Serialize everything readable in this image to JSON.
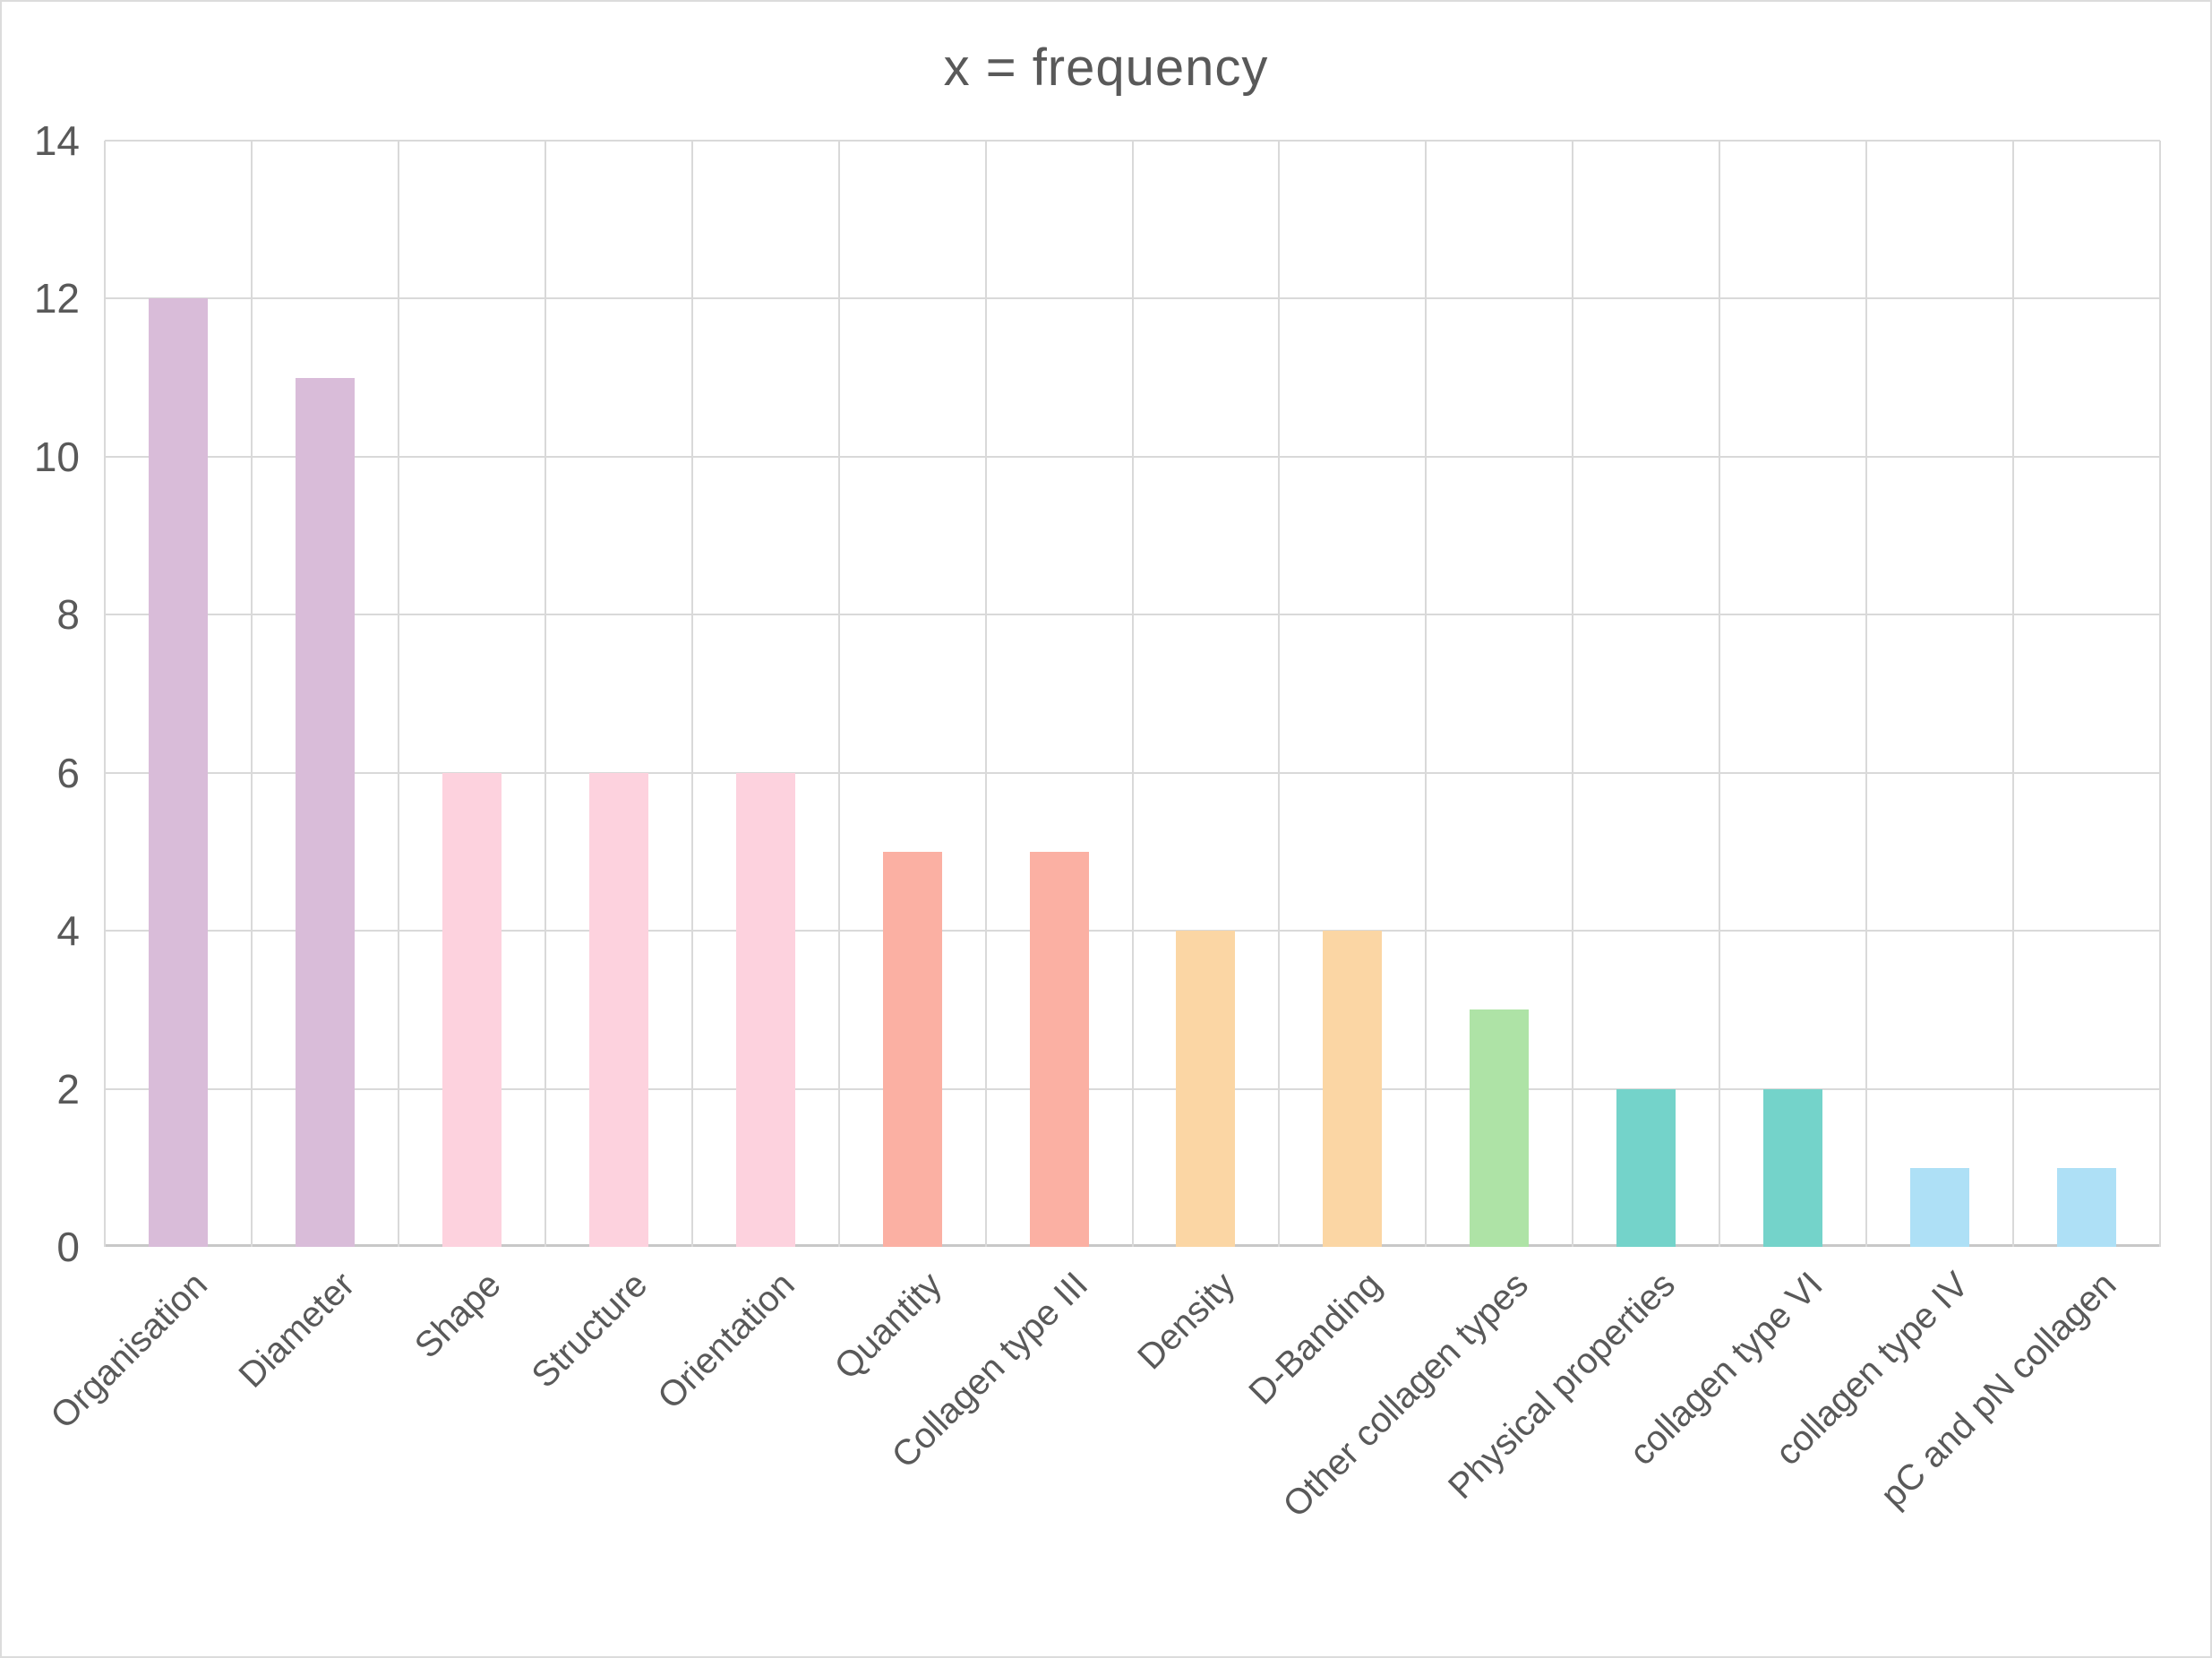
{
  "window": {
    "background": "#ffffff",
    "border_color": "#dcdcdc"
  },
  "chart_data": {
    "type": "bar",
    "title": "x = frequency",
    "categories": [
      "Organisation",
      "Diameter",
      "Shape",
      "Structure",
      "Orientation",
      "Quantity",
      "Collagen type III",
      "Density",
      "D-Banding",
      "Other collagen types",
      "Physical properties",
      "collagen type VI",
      "collagen type IV",
      "pC and pN collagen"
    ],
    "values": [
      12,
      11,
      6,
      6,
      6,
      5,
      5,
      4,
      4,
      3,
      2,
      2,
      1,
      1
    ],
    "bar_colors": [
      "#d9bcd9",
      "#d9bcd9",
      "#fdd2de",
      "#fdd2de",
      "#fdd2de",
      "#fbb0a3",
      "#fbb0a3",
      "#fbd6a4",
      "#fbd6a4",
      "#aee3a6",
      "#74d3ca",
      "#74d3ca",
      "#aee0f6",
      "#aee0f6"
    ],
    "xlabel": "",
    "ylabel": "",
    "ylim": [
      0,
      14
    ],
    "yticks": [
      0,
      2,
      4,
      6,
      8,
      10,
      12,
      14
    ],
    "grid": {
      "horizontal": true,
      "vertical": true,
      "color": "#d9d9d9"
    },
    "axis_color": "#c8c8c8",
    "title_color": "#595959",
    "tick_label_color": "#595959",
    "legend": "none"
  }
}
